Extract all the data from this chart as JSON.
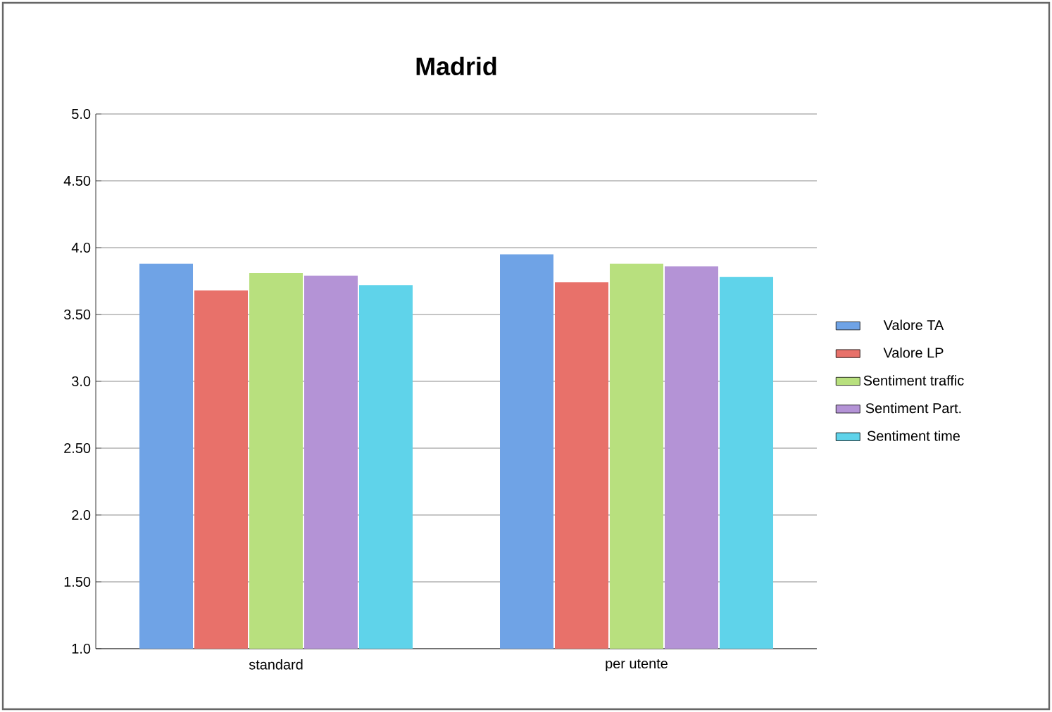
{
  "chart_data": {
    "type": "bar",
    "title": "Madrid",
    "categories": [
      "standard",
      "per utente"
    ],
    "series": [
      {
        "name": "Valore TA",
        "color": "#6fa3e6",
        "values": [
          3.88,
          3.95
        ]
      },
      {
        "name": "Valore LP",
        "color": "#e8716a",
        "values": [
          3.68,
          3.74
        ]
      },
      {
        "name": "Sentiment traffic",
        "color": "#b8e07e",
        "values": [
          3.81,
          3.88
        ]
      },
      {
        "name": "Sentiment Part.",
        "color": "#b493d6",
        "values": [
          3.79,
          3.86
        ]
      },
      {
        "name": "Sentiment time",
        "color": "#5fd3ea",
        "values": [
          3.72,
          3.78
        ]
      }
    ],
    "ylim": [
      1.0,
      5.0
    ],
    "yticks": [
      {
        "value": 1.0,
        "label": "1.0"
      },
      {
        "value": 1.5,
        "label": "1.50"
      },
      {
        "value": 2.0,
        "label": "2.0"
      },
      {
        "value": 2.5,
        "label": "2.50"
      },
      {
        "value": 3.0,
        "label": "3.0"
      },
      {
        "value": 3.5,
        "label": "3.50"
      },
      {
        "value": 4.0,
        "label": "4.0"
      },
      {
        "value": 4.5,
        "label": "4.50"
      },
      {
        "value": 5.0,
        "label": "5.0"
      }
    ],
    "grid": "y",
    "legend": "right"
  }
}
